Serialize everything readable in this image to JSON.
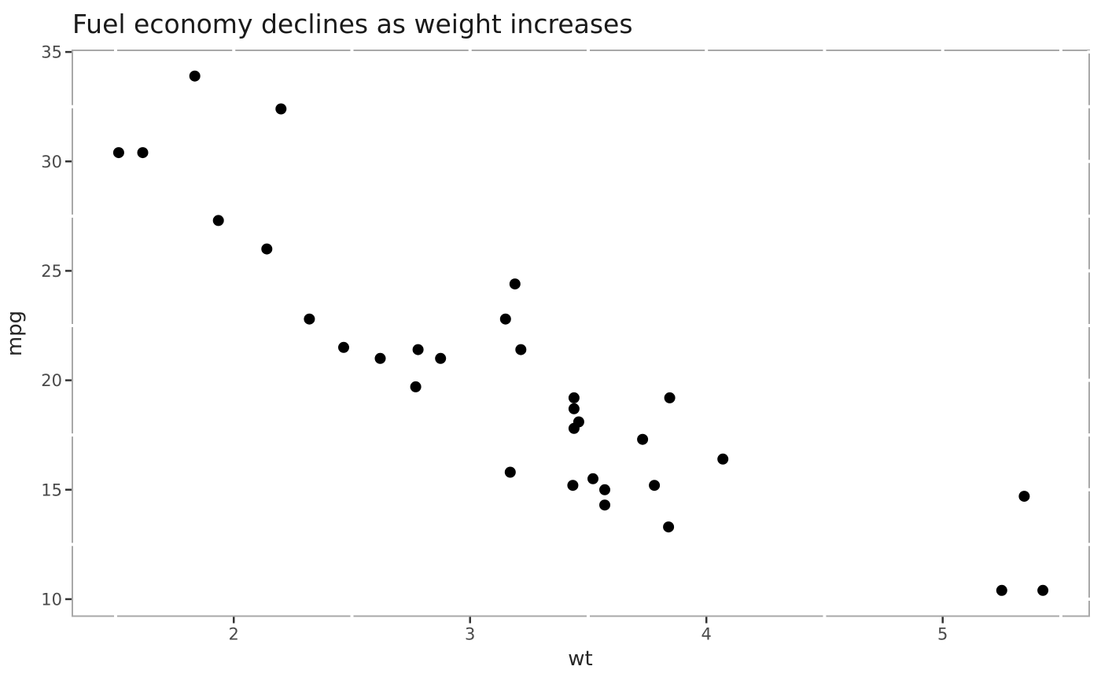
{
  "chart_data": {
    "type": "scatter",
    "title": "Fuel economy declines as weight increases",
    "xlabel": "wt",
    "ylabel": "mpg",
    "x": [
      2.62,
      2.875,
      2.32,
      3.215,
      3.44,
      3.46,
      3.57,
      3.19,
      3.15,
      3.44,
      3.44,
      4.07,
      3.73,
      3.78,
      5.25,
      5.424,
      5.345,
      2.2,
      1.615,
      1.835,
      2.465,
      3.52,
      3.435,
      3.84,
      3.845,
      1.935,
      2.14,
      1.513,
      3.17,
      2.77,
      3.57,
      2.78
    ],
    "y": [
      21.0,
      21.0,
      22.8,
      21.4,
      18.7,
      18.1,
      14.3,
      24.4,
      22.8,
      19.2,
      17.8,
      16.4,
      17.3,
      15.2,
      10.4,
      10.4,
      14.7,
      32.4,
      30.4,
      33.9,
      21.5,
      15.5,
      15.2,
      13.3,
      19.2,
      27.3,
      26.0,
      30.4,
      15.8,
      19.7,
      15.0,
      21.4
    ],
    "xlim": [
      1.317,
      5.62
    ],
    "ylim": [
      9.225,
      35.075
    ],
    "x_major_ticks": [
      2,
      3,
      4,
      5
    ],
    "x_major_tick_labels": [
      "2",
      "3",
      "4",
      "5"
    ],
    "x_minor_ticks": [
      1.5,
      2.5,
      3.5,
      4.5,
      5.5
    ],
    "y_major_ticks": [
      10,
      15,
      20,
      25,
      30,
      35
    ],
    "y_major_tick_labels": [
      "10",
      "15",
      "20",
      "25",
      "30",
      "35"
    ],
    "y_minor_ticks": [
      12.5,
      17.5,
      22.5,
      27.5,
      32.5
    ],
    "grid": false,
    "legend": "none",
    "background": "#ffffff",
    "point_color": "#000000",
    "point_radius": 7,
    "spine_color": "#a8a8a8",
    "major_tick_color": "#333333",
    "tick_label_color": "#4a4a4a",
    "title_color": "#1a1a1a",
    "axis_title_color": "#262626"
  }
}
